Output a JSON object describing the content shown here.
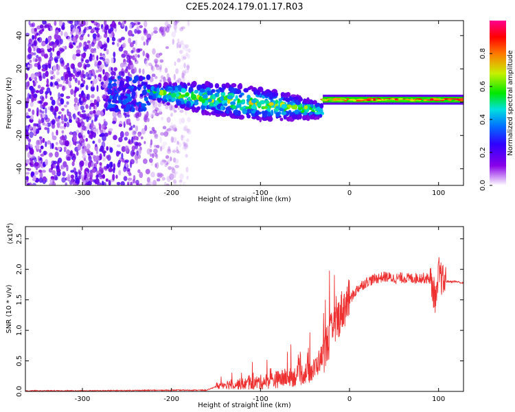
{
  "title": "C2E5.2024.179.01.17.R03",
  "chart_data": [
    {
      "type": "heatmap",
      "xlabel": "Height of straight line (km)",
      "ylabel": "Frequency (Hz)",
      "xlim": [
        -364,
        128
      ],
      "ylim": [
        -50,
        49
      ],
      "xticks": [
        -300,
        -200,
        -100,
        0,
        100
      ],
      "yticks": [
        -40,
        -20,
        0,
        20,
        40
      ],
      "colorbar": {
        "label": "Normalized spectral amplitude",
        "range": [
          0.0,
          1.0
        ],
        "ticks": [
          0.0,
          0.2,
          0.4,
          0.6,
          0.8
        ],
        "colormap": [
          "#ffffff",
          "#7a00e0",
          "#3b00ff",
          "#0060ff",
          "#00e0e0",
          "#00e000",
          "#d0f000",
          "#ff8000",
          "#ff0000",
          "#ff0090"
        ]
      },
      "regions": [
        {
          "x_range": [
            -364,
            -270
          ],
          "frequency_range": [
            -50,
            49
          ],
          "amplitude": 0.15,
          "description_of_content": "broadband noise"
        },
        {
          "x_range": [
            -270,
            -180
          ],
          "frequency_range": [
            -50,
            49
          ],
          "amplitude": 0.1
        },
        {
          "x_range": [
            -270,
            -225
          ],
          "frequency_range": [
            -5,
            15
          ],
          "amplitude": 0.25
        },
        {
          "x_range": [
            -225,
            -30
          ],
          "center_frequency_start": 6,
          "center_frequency_end": -5,
          "amplitude": 0.3
        },
        {
          "x_range": [
            -30,
            128
          ],
          "center_frequency": 1.5,
          "amplitude": 0.55
        }
      ]
    },
    {
      "type": "line",
      "xlabel": "Height of straight line (km)",
      "ylabel": "SNR (10 * v/v)",
      "y_multiplier": "(x10^4)",
      "xlim": [
        -364,
        128
      ],
      "ylim": [
        0,
        2.7
      ],
      "xticks": [
        -300,
        -200,
        -100,
        0,
        100
      ],
      "yticks": [
        0.0,
        0.5,
        1.0,
        1.5,
        2.0,
        2.5
      ],
      "color": "#ee3030",
      "series": [
        {
          "x": [
            -364,
            -300,
            -200,
            -160,
            -150,
            -140,
            -120,
            -100,
            -80,
            -60,
            -40,
            -30,
            -22,
            -15,
            -10,
            0,
            10,
            20,
            30,
            40,
            50,
            60,
            70,
            80,
            90,
            95,
            98,
            100,
            105,
            110,
            120,
            128
          ],
          "values": [
            0.01,
            0.01,
            0.02,
            0.02,
            0.08,
            0.12,
            0.12,
            0.15,
            0.2,
            0.25,
            0.35,
            0.6,
            0.9,
            1.1,
            1.3,
            1.5,
            1.7,
            1.8,
            1.85,
            1.88,
            1.85,
            1.86,
            1.85,
            1.86,
            1.85,
            1.6,
            1.5,
            1.95,
            1.8,
            1.8,
            1.8,
            1.77
          ]
        }
      ]
    }
  ]
}
